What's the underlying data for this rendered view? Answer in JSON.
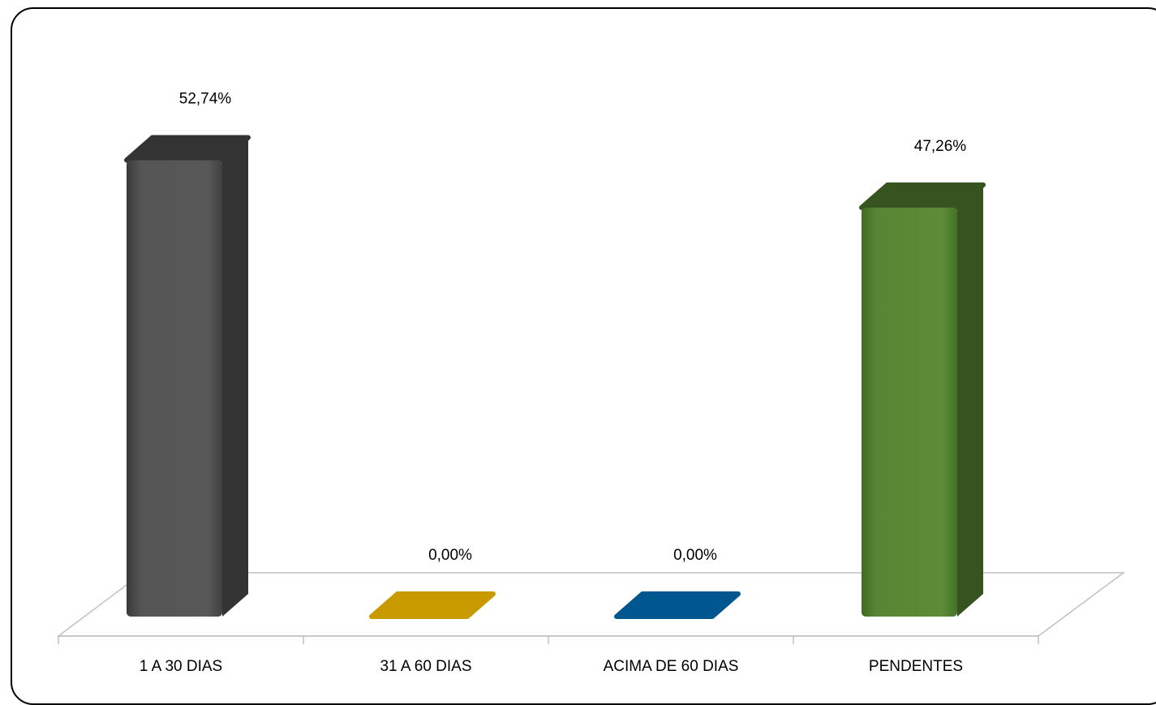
{
  "chart_data": {
    "type": "bar",
    "title": "",
    "xlabel": "",
    "ylabel": "",
    "categories": [
      "1 A 30 DIAS",
      "31 A 60 DIAS",
      "ACIMA DE 60 DIAS",
      "PENDENTES"
    ],
    "values": [
      52.74,
      0.0,
      0.0,
      47.26
    ],
    "data_labels": [
      "52,74%",
      "0,00%",
      "0,00%",
      "47,26%"
    ],
    "colors": [
      "#555555",
      "#c99a00",
      "#00578f",
      "#5a8a35"
    ],
    "side_colors": [
      "#333333",
      "#a07a00",
      "#00406b",
      "#36541f"
    ],
    "ylim": [
      0,
      60
    ],
    "grid": false,
    "legend": "none",
    "style": "3d-column"
  }
}
